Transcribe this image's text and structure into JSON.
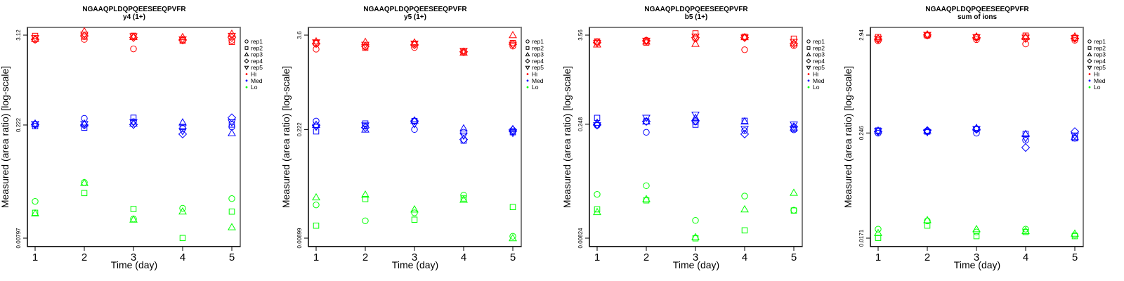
{
  "legend": {
    "entries": [
      {
        "label": "rep1",
        "shape": "circle"
      },
      {
        "label": "rep2",
        "shape": "square"
      },
      {
        "label": "rep3",
        "shape": "triangle-up"
      },
      {
        "label": "rep4",
        "shape": "diamond"
      },
      {
        "label": "rep5",
        "shape": "triangle-down"
      },
      {
        "label": "Hi",
        "shape": "dot",
        "color": "#ff0000"
      },
      {
        "label": "Med",
        "shape": "dot",
        "color": "#0000ff"
      },
      {
        "label": "Lo",
        "shape": "dot",
        "color": "#00ff00"
      }
    ]
  },
  "colors": {
    "Hi": "#ff0000",
    "Med": "#0000ff",
    "Lo": "#00ff00",
    "frame": "#7f7f7f"
  },
  "chart_data": [
    {
      "type": "scatter",
      "title": "NGAAQPLDQPQEESEEQPVFR",
      "subtitle": "y4 (1+)",
      "xlabel": "Time (day)",
      "ylabel": "Measured (area ratio) [log-scale]",
      "yscale": "log",
      "x_ticks": [
        1,
        2,
        3,
        4,
        5
      ],
      "y_ticks": [
        {
          "value": 3.12,
          "label": "3.12"
        },
        {
          "value": 0.222,
          "label": "0.222"
        },
        {
          "value": 0.00797,
          "label": "0.00797"
        }
      ],
      "ylim": [
        0.0062,
        3.95
      ],
      "xlim": [
        0.85,
        5.17
      ],
      "legend_position": "right",
      "series": [
        {
          "group": "Hi",
          "rep": "rep1",
          "x": [
            1,
            2,
            3,
            4,
            5
          ],
          "y": [
            2.72,
            2.75,
            2.08,
            2.68,
            2.67
          ]
        },
        {
          "group": "Hi",
          "rep": "rep2",
          "x": [
            1,
            2,
            3,
            4,
            5
          ],
          "y": [
            3.05,
            2.98,
            3.06,
            2.65,
            2.55
          ]
        },
        {
          "group": "Hi",
          "rep": "rep3",
          "x": [
            1,
            2,
            3,
            4,
            5
          ],
          "y": [
            2.8,
            3.5,
            2.95,
            2.95,
            3.25
          ]
        },
        {
          "group": "Hi",
          "rep": "rep4",
          "x": [
            1,
            2,
            3,
            4,
            5
          ],
          "y": [
            2.75,
            3.05,
            2.9,
            2.7,
            2.9
          ]
        },
        {
          "group": "Hi",
          "rep": "rep5",
          "x": [
            1,
            2,
            3,
            4,
            5
          ],
          "y": [
            2.85,
            3.15,
            3.0,
            2.75,
            3.05
          ]
        },
        {
          "group": "Med",
          "rep": "rep1",
          "x": [
            1,
            2,
            3,
            4,
            5
          ],
          "y": [
            0.225,
            0.27,
            0.245,
            0.2,
            0.21
          ]
        },
        {
          "group": "Med",
          "rep": "rep2",
          "x": [
            1,
            2,
            3,
            4,
            5
          ],
          "y": [
            0.215,
            0.205,
            0.275,
            0.21,
            0.225
          ]
        },
        {
          "group": "Med",
          "rep": "rep3",
          "x": [
            1,
            2,
            3,
            4,
            5
          ],
          "y": [
            0.232,
            0.232,
            0.232,
            0.24,
            0.175
          ]
        },
        {
          "group": "Med",
          "rep": "rep4",
          "x": [
            1,
            2,
            3,
            4,
            5
          ],
          "y": [
            0.225,
            0.222,
            0.225,
            0.17,
            0.275
          ]
        },
        {
          "group": "Med",
          "rep": "rep5",
          "x": [
            1,
            2,
            3,
            4,
            5
          ],
          "y": [
            0.228,
            0.228,
            0.24,
            0.185,
            0.24
          ]
        },
        {
          "group": "Lo",
          "rep": "rep1",
          "x": [
            1,
            2,
            3,
            4,
            5
          ],
          "y": [
            0.0235,
            0.041,
            0.014,
            0.0192,
            0.0255
          ]
        },
        {
          "group": "Lo",
          "rep": "rep2",
          "x": [
            1,
            2,
            3,
            4,
            5
          ],
          "y": [
            0.0168,
            0.03,
            0.0188,
            0.008,
            0.0174
          ]
        },
        {
          "group": "Lo",
          "rep": "rep3",
          "x": [
            1,
            2,
            3,
            4,
            5
          ],
          "y": [
            0.0165,
            0.0405,
            0.0138,
            0.0175,
            0.011
          ]
        }
      ]
    },
    {
      "type": "scatter",
      "title": "NGAAQPLDQPQEESEEQPVFR",
      "subtitle": "y5 (1+)",
      "xlabel": "Time (day)",
      "ylabel": "Measured (area ratio) [log-scale]",
      "yscale": "log",
      "x_ticks": [
        1,
        2,
        3,
        4,
        5
      ],
      "y_ticks": [
        {
          "value": 3.6,
          "label": "3.6"
        },
        {
          "value": 0.222,
          "label": "0.222"
        },
        {
          "value": 0.00899,
          "label": "0.00899"
        }
      ],
      "ylim": [
        0.007,
        4.6
      ],
      "xlim": [
        0.85,
        5.17
      ],
      "legend_position": "right",
      "series": [
        {
          "group": "Hi",
          "rep": "rep1",
          "x": [
            1,
            2,
            3,
            4,
            5
          ],
          "y": [
            2.38,
            2.55,
            2.5,
            2.15,
            2.6
          ]
        },
        {
          "group": "Hi",
          "rep": "rep2",
          "x": [
            1,
            2,
            3,
            4,
            5
          ],
          "y": [
            2.85,
            2.48,
            2.75,
            2.25,
            2.85
          ]
        },
        {
          "group": "Hi",
          "rep": "rep3",
          "x": [
            1,
            2,
            3,
            4,
            5
          ],
          "y": [
            3.0,
            2.95,
            2.9,
            2.15,
            3.6
          ]
        },
        {
          "group": "Hi",
          "rep": "rep4",
          "x": [
            1,
            2,
            3,
            4,
            5
          ],
          "y": [
            2.8,
            2.6,
            2.7,
            2.2,
            2.75
          ]
        },
        {
          "group": "Hi",
          "rep": "rep5",
          "x": [
            1,
            2,
            3,
            4,
            5
          ],
          "y": [
            2.9,
            2.7,
            2.8,
            2.25,
            2.7
          ]
        },
        {
          "group": "Med",
          "rep": "rep1",
          "x": [
            1,
            2,
            3,
            4,
            5
          ],
          "y": [
            0.285,
            0.245,
            0.222,
            0.205,
            0.21
          ]
        },
        {
          "group": "Med",
          "rep": "rep2",
          "x": [
            1,
            2,
            3,
            4,
            5
          ],
          "y": [
            0.21,
            0.265,
            0.285,
            0.16,
            0.205
          ]
        },
        {
          "group": "Med",
          "rep": "rep3",
          "x": [
            1,
            2,
            3,
            4,
            5
          ],
          "y": [
            0.255,
            0.222,
            0.29,
            0.23,
            0.225
          ]
        },
        {
          "group": "Med",
          "rep": "rep4",
          "x": [
            1,
            2,
            3,
            4,
            5
          ],
          "y": [
            0.25,
            0.235,
            0.285,
            0.165,
            0.22
          ]
        },
        {
          "group": "Med",
          "rep": "rep5",
          "x": [
            1,
            2,
            3,
            4,
            5
          ],
          "y": [
            0.24,
            0.25,
            0.26,
            0.185,
            0.2
          ]
        },
        {
          "group": "Lo",
          "rep": "rep1",
          "x": [
            1,
            2,
            3,
            4,
            5
          ],
          "y": [
            0.024,
            0.015,
            0.019,
            0.032,
            0.0095
          ]
        },
        {
          "group": "Lo",
          "rep": "rep2",
          "x": [
            1,
            2,
            3,
            4,
            5
          ],
          "y": [
            0.013,
            0.0285,
            0.0155,
            0.029,
            0.0225
          ]
        },
        {
          "group": "Lo",
          "rep": "rep3",
          "x": [
            1,
            2,
            3,
            4,
            5
          ],
          "y": [
            0.03,
            0.0325,
            0.021,
            0.028,
            0.009
          ]
        }
      ]
    },
    {
      "type": "scatter",
      "title": "NGAAQPLDQPQEESEEQPVFR",
      "subtitle": "b5 (1+)",
      "xlabel": "Time (day)",
      "ylabel": "Measured (area ratio) [log-scale]",
      "yscale": "log",
      "x_ticks": [
        1,
        2,
        3,
        4,
        5
      ],
      "y_ticks": [
        {
          "value": 3.56,
          "label": "3.56"
        },
        {
          "value": 0.248,
          "label": "0.248"
        },
        {
          "value": 0.00824,
          "label": "0.00824"
        }
      ],
      "ylim": [
        0.0064,
        4.5
      ],
      "xlim": [
        0.85,
        5.17
      ],
      "legend_position": "right",
      "series": [
        {
          "group": "Hi",
          "rep": "rep1",
          "x": [
            1,
            2,
            3,
            4,
            5
          ],
          "y": [
            2.9,
            3.05,
            3.2,
            2.3,
            2.6
          ]
        },
        {
          "group": "Hi",
          "rep": "rep2",
          "x": [
            1,
            2,
            3,
            4,
            5
          ],
          "y": [
            2.95,
            2.85,
            3.75,
            3.4,
            3.2
          ]
        },
        {
          "group": "Hi",
          "rep": "rep3",
          "x": [
            1,
            2,
            3,
            4,
            5
          ],
          "y": [
            2.7,
            2.95,
            2.75,
            3.35,
            2.8
          ]
        },
        {
          "group": "Hi",
          "rep": "rep4",
          "x": [
            1,
            2,
            3,
            4,
            5
          ],
          "y": [
            2.85,
            3.0,
            3.3,
            3.3,
            2.75
          ]
        },
        {
          "group": "Hi",
          "rep": "rep5",
          "x": [
            1,
            2,
            3,
            4,
            5
          ],
          "y": [
            2.8,
            3.0,
            3.4,
            3.3,
            2.9
          ]
        },
        {
          "group": "Med",
          "rep": "rep1",
          "x": [
            1,
            2,
            3,
            4,
            5
          ],
          "y": [
            0.24,
            0.195,
            0.265,
            0.205,
            0.21
          ]
        },
        {
          "group": "Med",
          "rep": "rep2",
          "x": [
            1,
            2,
            3,
            4,
            5
          ],
          "y": [
            0.3,
            0.27,
            0.245,
            0.275,
            0.215
          ]
        },
        {
          "group": "Med",
          "rep": "rep3",
          "x": [
            1,
            2,
            3,
            4,
            5
          ],
          "y": [
            0.26,
            0.27,
            0.3,
            0.27,
            0.225
          ]
        },
        {
          "group": "Med",
          "rep": "rep4",
          "x": [
            1,
            2,
            3,
            4,
            5
          ],
          "y": [
            0.245,
            0.27,
            0.275,
            0.185,
            0.23
          ]
        },
        {
          "group": "Med",
          "rep": "rep5",
          "x": [
            1,
            2,
            3,
            4,
            5
          ],
          "y": [
            0.24,
            0.3,
            0.33,
            0.215,
            0.245
          ]
        },
        {
          "group": "Lo",
          "rep": "rep1",
          "x": [
            1,
            2,
            3,
            4,
            5
          ],
          "y": [
            0.0305,
            0.0395,
            0.014,
            0.029,
            0.019
          ]
        },
        {
          "group": "Lo",
          "rep": "rep2",
          "x": [
            1,
            2,
            3,
            4,
            5
          ],
          "y": [
            0.0195,
            0.0255,
            0.0082,
            0.0104,
            0.0188
          ]
        },
        {
          "group": "Lo",
          "rep": "rep3",
          "x": [
            1,
            2,
            3,
            4,
            5
          ],
          "y": [
            0.018,
            0.0265,
            0.0085,
            0.0195,
            0.032
          ]
        }
      ]
    },
    {
      "type": "scatter",
      "title": "NGAAQPLDQPQEESEEQPVFR",
      "subtitle": "sum of ions",
      "xlabel": "Time (day)",
      "ylabel": "Measured (area ratio) [log-scale]",
      "yscale": "log",
      "x_ticks": [
        1,
        2,
        3,
        4,
        5
      ],
      "y_ticks": [
        {
          "value": 2.94,
          "label": "2.94"
        },
        {
          "value": 0.246,
          "label": "0.246"
        },
        {
          "value": 0.0171,
          "label": "0.0171"
        }
      ],
      "ylim": [
        0.014,
        3.6
      ],
      "xlim": [
        0.85,
        5.17
      ],
      "legend_position": "right",
      "series": [
        {
          "group": "Hi",
          "rep": "rep1",
          "x": [
            1,
            2,
            3,
            4,
            5
          ],
          "y": [
            2.55,
            2.9,
            2.62,
            2.35,
            2.58
          ]
        },
        {
          "group": "Hi",
          "rep": "rep2",
          "x": [
            1,
            2,
            3,
            4,
            5
          ],
          "y": [
            2.8,
            2.92,
            2.8,
            2.9,
            2.75
          ]
        },
        {
          "group": "Hi",
          "rep": "rep3",
          "x": [
            1,
            2,
            3,
            4,
            5
          ],
          "y": [
            2.72,
            3.0,
            2.85,
            2.8,
            2.85
          ]
        },
        {
          "group": "Hi",
          "rep": "rep4",
          "x": [
            1,
            2,
            3,
            4,
            5
          ],
          "y": [
            2.65,
            2.95,
            2.75,
            2.7,
            2.7
          ]
        },
        {
          "group": "Hi",
          "rep": "rep5",
          "x": [
            1,
            2,
            3,
            4,
            5
          ],
          "y": [
            2.68,
            2.95,
            2.78,
            2.75,
            2.72
          ]
        },
        {
          "group": "Med",
          "rep": "rep1",
          "x": [
            1,
            2,
            3,
            4,
            5
          ],
          "y": [
            0.245,
            0.255,
            0.245,
            0.205,
            0.215
          ]
        },
        {
          "group": "Med",
          "rep": "rep2",
          "x": [
            1,
            2,
            3,
            4,
            5
          ],
          "y": [
            0.262,
            0.255,
            0.272,
            0.24,
            0.215
          ]
        },
        {
          "group": "Med",
          "rep": "rep3",
          "x": [
            1,
            2,
            3,
            4,
            5
          ],
          "y": [
            0.262,
            0.262,
            0.28,
            0.24,
            0.222
          ]
        },
        {
          "group": "Med",
          "rep": "rep4",
          "x": [
            1,
            2,
            3,
            4,
            5
          ],
          "y": [
            0.255,
            0.262,
            0.27,
            0.17,
            0.255
          ]
        },
        {
          "group": "Med",
          "rep": "rep5",
          "x": [
            1,
            2,
            3,
            4,
            5
          ],
          "y": [
            0.258,
            0.25,
            0.27,
            0.215,
            0.23
          ]
        },
        {
          "group": "Lo",
          "rep": "rep1",
          "x": [
            1,
            2,
            3,
            4,
            5
          ],
          "y": [
            0.0215,
            0.0265,
            0.02,
            0.0215,
            0.0185
          ]
        },
        {
          "group": "Lo",
          "rep": "rep2",
          "x": [
            1,
            2,
            3,
            4,
            5
          ],
          "y": [
            0.0172,
            0.0235,
            0.018,
            0.02,
            0.018
          ]
        },
        {
          "group": "Lo",
          "rep": "rep3",
          "x": [
            1,
            2,
            3,
            4,
            5
          ],
          "y": [
            0.0195,
            0.027,
            0.0215,
            0.0205,
            0.0192
          ]
        }
      ]
    }
  ]
}
